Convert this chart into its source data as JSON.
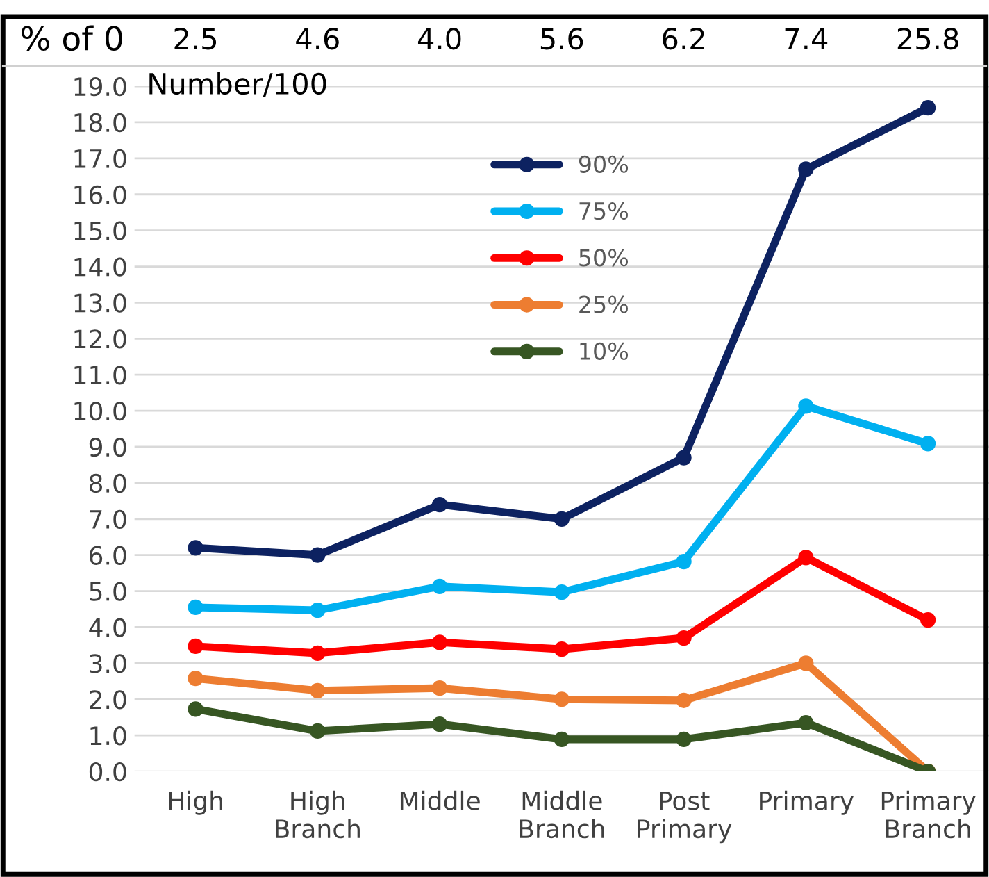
{
  "chart_data": {
    "type": "line",
    "ylabel": "Number/100",
    "categories": [
      "High",
      "High Branch",
      "Middle",
      "Middle Branch",
      "Post Primary",
      "Primary",
      "Primary Branch"
    ],
    "series": [
      {
        "name": "90%",
        "color": "#0d2261",
        "values": [
          6.2,
          6.0,
          7.4,
          7.0,
          8.7,
          16.7,
          18.4
        ]
      },
      {
        "name": "75%",
        "color": "#00b0f0",
        "values": [
          4.55,
          4.47,
          5.13,
          4.97,
          5.82,
          10.13,
          9.09
        ]
      },
      {
        "name": "50%",
        "color": "#ff0000",
        "values": [
          3.47,
          3.28,
          3.58,
          3.39,
          3.7,
          5.93,
          4.2
        ]
      },
      {
        "name": "25%",
        "color": "#ed7d31",
        "values": [
          2.58,
          2.24,
          2.31,
          2.0,
          1.97,
          3.0,
          0.0
        ]
      },
      {
        "name": "10%",
        "color": "#375623",
        "values": [
          1.73,
          1.12,
          1.31,
          0.89,
          0.89,
          1.35,
          0.0
        ]
      }
    ],
    "ylim": [
      0,
      19
    ],
    "yticks": [
      {
        "value": 0,
        "label": "0.0"
      },
      {
        "value": 1,
        "label": "1.0"
      },
      {
        "value": 2,
        "label": "2.0"
      },
      {
        "value": 3,
        "label": "3.0"
      },
      {
        "value": 4,
        "label": "4.0"
      },
      {
        "value": 5,
        "label": "5.0"
      },
      {
        "value": 6,
        "label": "6.0"
      },
      {
        "value": 7,
        "label": "7.0"
      },
      {
        "value": 8,
        "label": "8.0"
      },
      {
        "value": 9,
        "label": "9.0"
      },
      {
        "value": 10,
        "label": "10.0"
      },
      {
        "value": 11,
        "label": "11.0"
      },
      {
        "value": 12,
        "label": "12.0"
      },
      {
        "value": 13,
        "label": "13.0"
      },
      {
        "value": 14,
        "label": "14.0"
      },
      {
        "value": 15,
        "label": "15.0"
      },
      {
        "value": 16,
        "label": "16.0"
      },
      {
        "value": 17,
        "label": "17.0"
      },
      {
        "value": 18,
        "label": "18.0"
      },
      {
        "value": 19,
        "label": "19.0"
      }
    ],
    "annotations": [
      "% of 0",
      "2.5",
      "4.6",
      "4.0",
      "5.6",
      "6.2",
      "7.4",
      "25.8"
    ],
    "grid": "y",
    "legend": "top",
    "marker": "circle",
    "line_style": "solid"
  }
}
